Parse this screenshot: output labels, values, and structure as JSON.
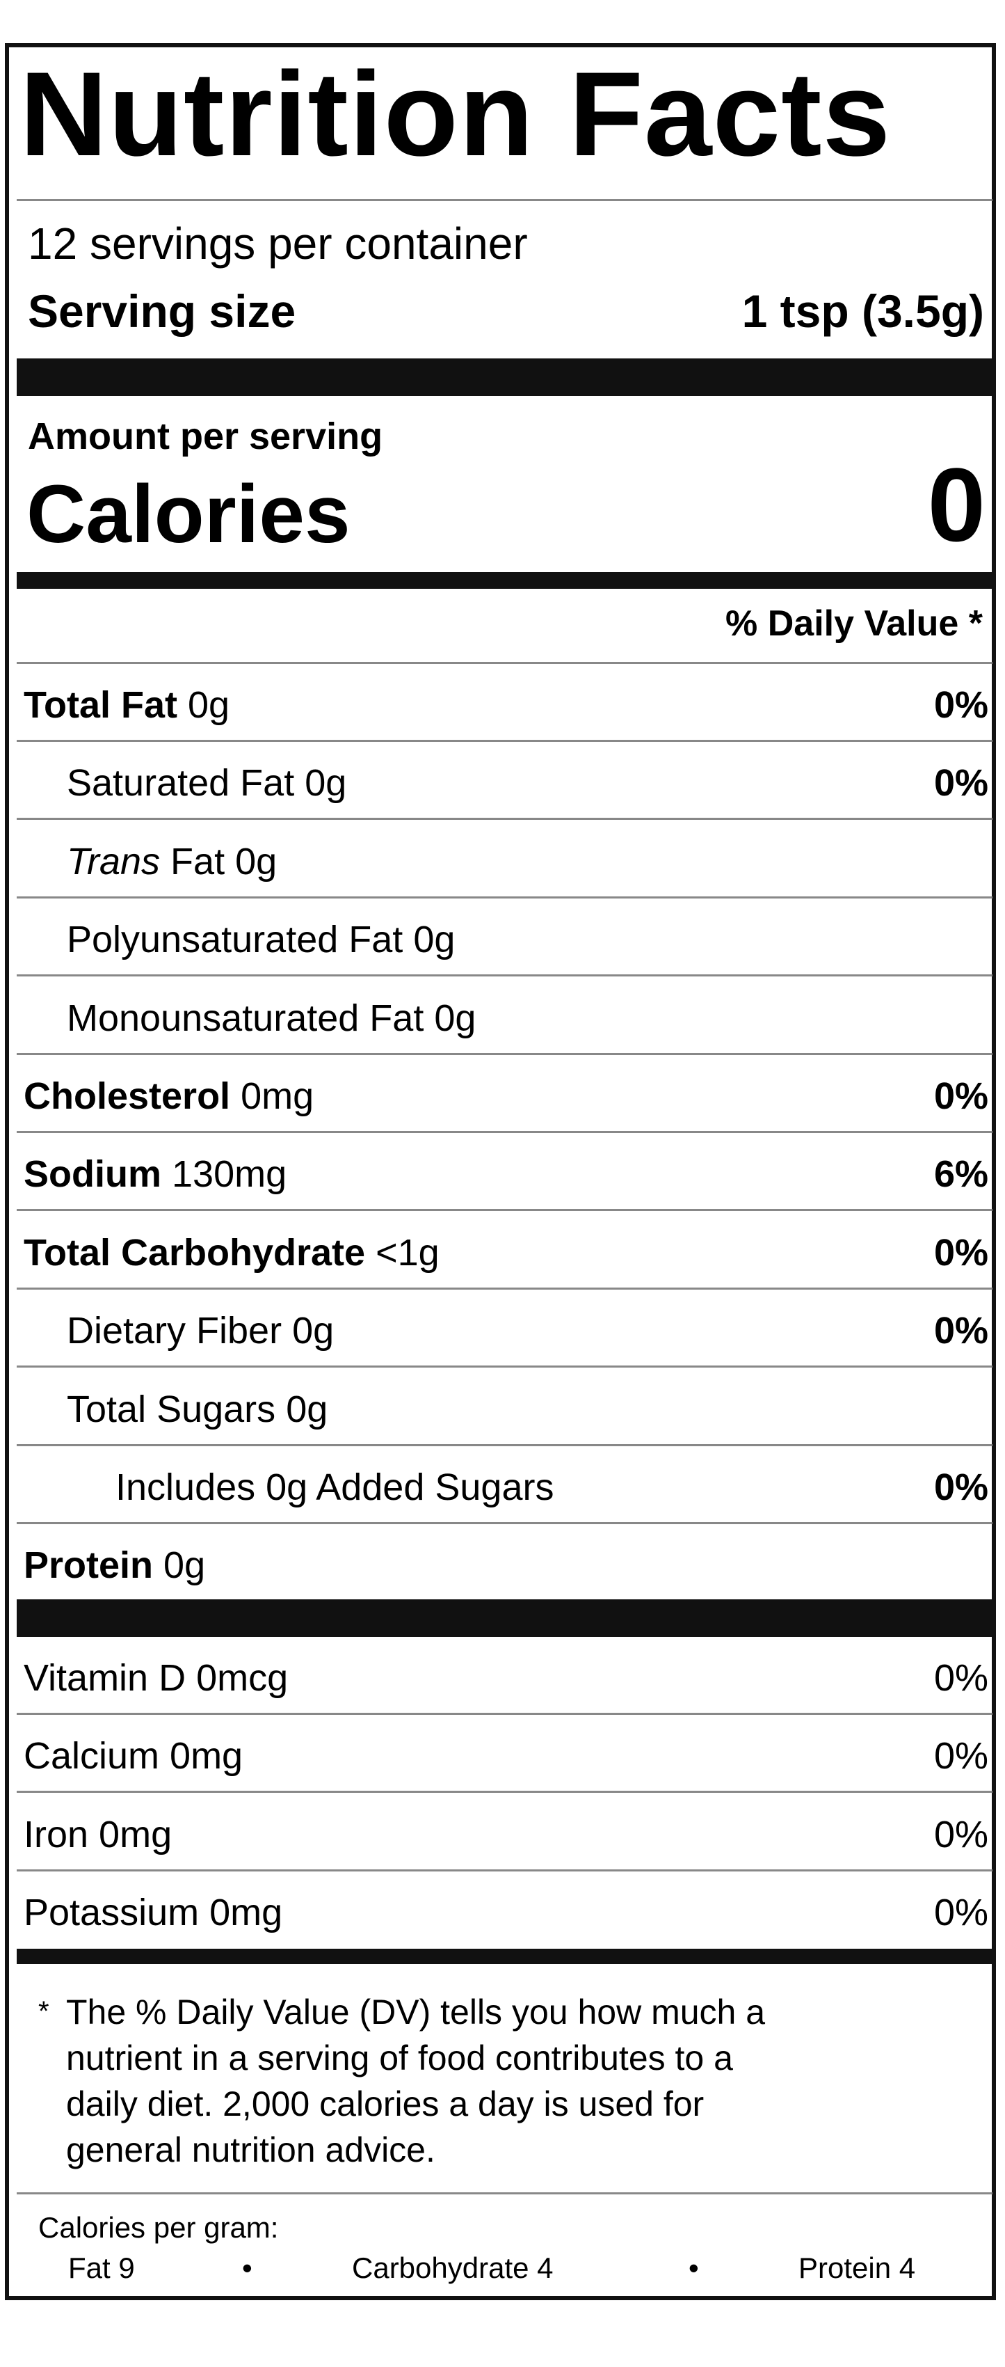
{
  "title": "Nutrition Facts",
  "servings_per_container": "12 servings per container",
  "serving_size_label": "Serving size",
  "serving_size_value": "1 tsp (3.5g)",
  "amount_per_serving": "Amount per serving",
  "calories_label": "Calories",
  "calories_value": "0",
  "daily_value_header": "% Daily Value *",
  "nutrients": [
    {
      "name": "Total Fat",
      "amount": "0g",
      "dv": "0%",
      "bold": true,
      "indent": 0
    },
    {
      "name": "Saturated Fat",
      "amount": "0g",
      "dv": "0%",
      "bold": false,
      "indent": 1
    },
    {
      "name": "Trans",
      "name_suffix": "Fat",
      "amount": "0g",
      "dv": "",
      "bold": false,
      "indent": 1,
      "italic": true
    },
    {
      "name": "Polyunsaturated Fat",
      "amount": "0g",
      "dv": "",
      "bold": false,
      "indent": 1
    },
    {
      "name": "Monounsaturated Fat",
      "amount": "0g",
      "dv": "",
      "bold": false,
      "indent": 1
    },
    {
      "name": "Cholesterol",
      "amount": "0mg",
      "dv": "0%",
      "bold": true,
      "indent": 0
    },
    {
      "name": "Sodium",
      "amount": "130mg",
      "dv": "6%",
      "bold": true,
      "indent": 0
    },
    {
      "name": "Total Carbohydrate",
      "amount": "<1g",
      "dv": "0%",
      "bold": true,
      "indent": 0
    },
    {
      "name": "Dietary Fiber",
      "amount": "0g",
      "dv": "0%",
      "bold": false,
      "indent": 1
    },
    {
      "name": "Total Sugars",
      "amount": "0g",
      "dv": "",
      "bold": false,
      "indent": 1
    },
    {
      "name": "Includes 0g Added Sugars",
      "amount": "",
      "dv": "0%",
      "bold": false,
      "indent": 2
    },
    {
      "name": "Protein",
      "amount": "0g",
      "dv": "",
      "bold": true,
      "indent": 0
    }
  ],
  "vitamins": [
    {
      "name": "Vitamin D 0mcg",
      "dv": "0%"
    },
    {
      "name": "Calcium 0mg",
      "dv": "0%"
    },
    {
      "name": "Iron 0mg",
      "dv": "0%"
    },
    {
      "name": "Potassium 0mg",
      "dv": "0%"
    }
  ],
  "footnote": {
    "asterisk": "*",
    "lines": [
      "The % Daily Value (DV) tells you how much a",
      "nutrient in a serving of food contributes to a",
      "daily diet. 2,000 calories a day is used for",
      "general nutrition advice."
    ]
  },
  "calories_per_gram": {
    "label": "Calories per gram:",
    "fat": "Fat 9",
    "carbohydrate": "Carbohydrate 4",
    "protein": "Protein 4",
    "separator": "•"
  }
}
